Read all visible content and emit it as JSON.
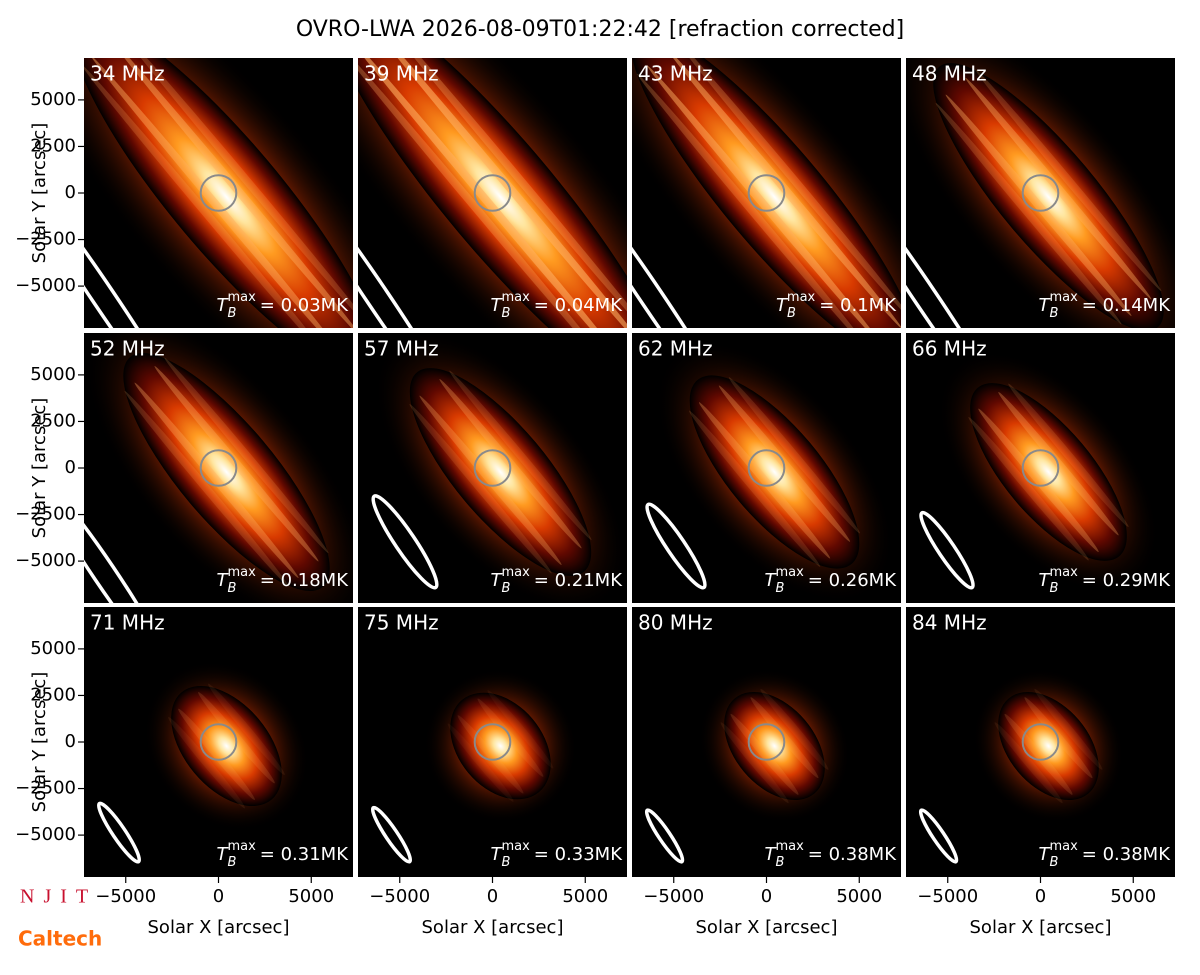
{
  "chart_data": {
    "type": "image-grid",
    "title": "OVRO-LWA 2026-08-09T01:22:42 [refraction corrected]",
    "xlabel": "Solar X [arcsec]",
    "ylabel": "Solar Y [arcsec]",
    "xlim": [
      -7250,
      7250
    ],
    "ylim": [
      -7250,
      7250
    ],
    "xticks": [
      {
        "value": -5000,
        "label": "−5000"
      },
      0,
      5000
    ],
    "yticks": [
      {
        "value": -5000,
        "label": "−5000"
      },
      {
        "value": -2500,
        "label": "−2500"
      },
      0,
      2500,
      5000
    ],
    "tb_symbol": "T",
    "tb_sub": "B",
    "tb_sup": "max",
    "panels": [
      {
        "freq": "34 MHz",
        "tmax": "= 0.03MK"
      },
      {
        "freq": "39 MHz",
        "tmax": "= 0.04MK"
      },
      {
        "freq": "43 MHz",
        "tmax": "= 0.1MK"
      },
      {
        "freq": "48 MHz",
        "tmax": "= 0.14MK"
      },
      {
        "freq": "52 MHz",
        "tmax": "= 0.18MK"
      },
      {
        "freq": "57 MHz",
        "tmax": "= 0.21MK"
      },
      {
        "freq": "62 MHz",
        "tmax": "= 0.26MK"
      },
      {
        "freq": "66 MHz",
        "tmax": "= 0.29MK"
      },
      {
        "freq": "71 MHz",
        "tmax": "= 0.31MK"
      },
      {
        "freq": "75 MHz",
        "tmax": "= 0.33MK"
      },
      {
        "freq": "80 MHz",
        "tmax": "= 0.38MK"
      },
      {
        "freq": "84 MHz",
        "tmax": "= 0.38MK"
      }
    ]
  },
  "logos": [
    "NJIT",
    "Caltech"
  ]
}
